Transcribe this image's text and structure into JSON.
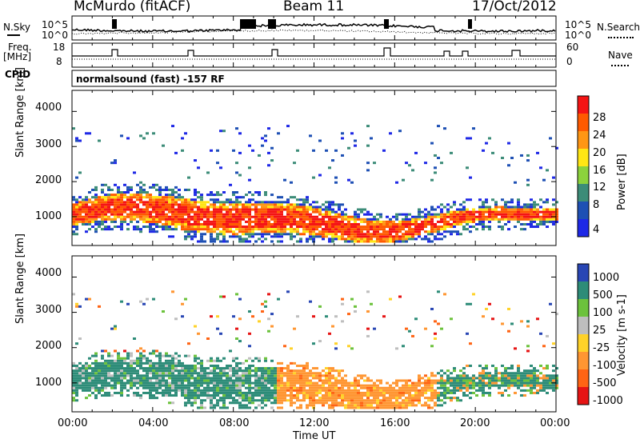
{
  "header": {
    "station": "McMurdo (fitACF)",
    "beam": "Beam 11",
    "date": "17/Oct/2012"
  },
  "top_panels": {
    "nsky_label": "N.Sky",
    "nsearch_label": "N.Search",
    "nsky_ticks": [
      "10^5",
      "10^0"
    ],
    "nsearch_ticks": [
      "10^5",
      "10^0"
    ],
    "freq_label": "Freq.",
    "freq_unit": "[MHz]",
    "freq_ticks": [
      "18",
      "8"
    ],
    "nave_label": "Nave",
    "nave_ticks": [
      "60",
      "0"
    ],
    "cpid_label": "CPID",
    "cpid_text": "normalsound (fast) -157 RF"
  },
  "chart_data": [
    {
      "type": "heatmap",
      "name": "power",
      "ylabel": "Slant Range [km]",
      "y_ticks": [
        "1000",
        "2000",
        "3000",
        "4000"
      ],
      "ylim": [
        180,
        4600
      ],
      "colorbar_label": "Power [dB]",
      "colorbar_ticks": [
        "4",
        "8",
        "12",
        "16",
        "20",
        "24",
        "28"
      ],
      "colors": [
        "#1e28e6",
        "#1e50b4",
        "#3c8c78",
        "#8cd23c",
        "#ffe614",
        "#ff9614",
        "#ff5a00",
        "#f51414"
      ]
    },
    {
      "type": "heatmap",
      "name": "velocity",
      "ylabel": "Slant Range [km]",
      "y_ticks": [
        "1000",
        "2000",
        "3000",
        "4000"
      ],
      "ylim": [
        180,
        4600
      ],
      "colorbar_label": "Velocity [m s-1]",
      "colorbar_ticks": [
        "1000",
        "500",
        "100",
        "25",
        "-25",
        "-100",
        "-500",
        "-1000"
      ],
      "colors": [
        "#2846b4",
        "#2d8c78",
        "#6cc23c",
        "#bebebe",
        "#ffd228",
        "#ff9632",
        "#ff6414",
        "#e61414"
      ]
    }
  ],
  "x_axis": {
    "ticks": [
      "00:00",
      "04:00",
      "08:00",
      "12:00",
      "16:00",
      "20:00",
      "00:00"
    ],
    "label": "Time UT"
  }
}
